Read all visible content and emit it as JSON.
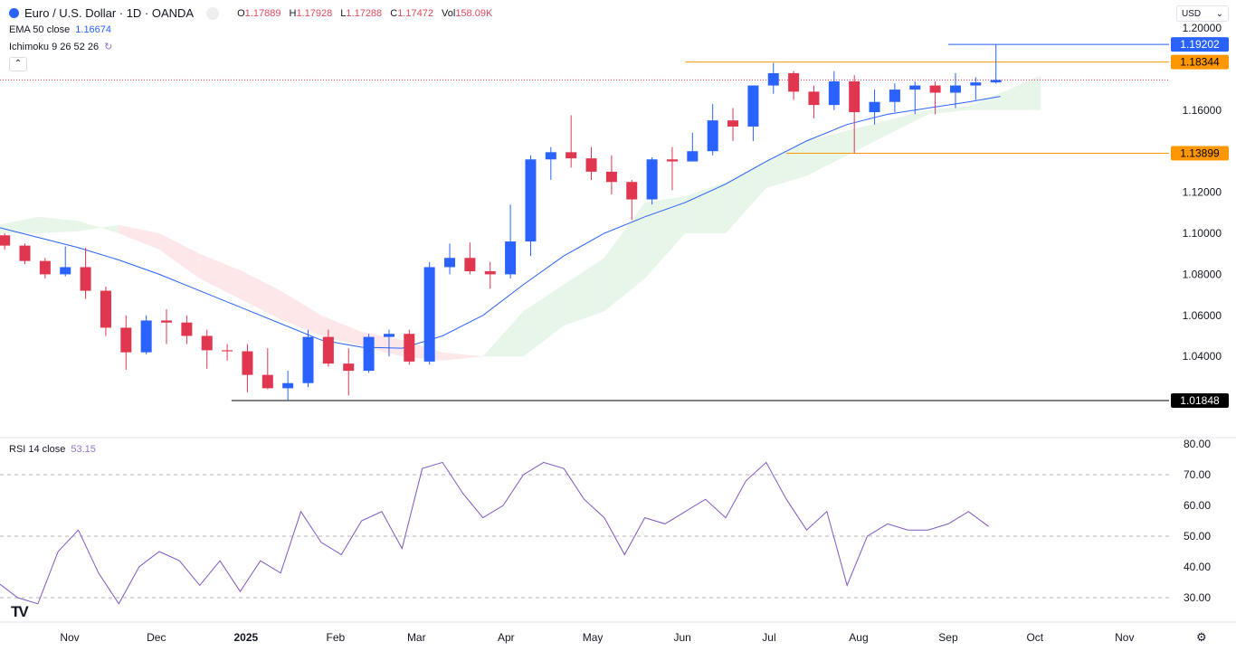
{
  "header": {
    "symbol": "Euro / U.S. Dollar · 1D · OANDA",
    "open_label": "O",
    "open": "1.17889",
    "high_label": "H",
    "high": "1.17928",
    "low_label": "L",
    "low": "1.17288",
    "close_label": "C",
    "close": "1.17472",
    "vol_label": "Vol",
    "vol": "158.09K"
  },
  "indicators": {
    "ema_label": "EMA 50 close",
    "ema_value": "1.16674",
    "ichimoku_label": "Ichimoku 9 26 52 26",
    "rsi_label": "RSI 14 close",
    "rsi_value": "53.15"
  },
  "currency": "USD",
  "colors": {
    "up": "#2962ff",
    "down": "#e0364f",
    "ema": "#2962ff",
    "rsi": "#7e57c2",
    "cloud_up": "#e8f5e9",
    "cloud_down": "#fde7e9",
    "level_orange": "#ff9800",
    "level_blue": "#2962ff"
  },
  "chart_data": {
    "type": "candlestick",
    "price_ticks": [
      "1.20000",
      "1.16000",
      "1.12000",
      "1.10000",
      "1.08000",
      "1.06000",
      "1.04000"
    ],
    "rsi_ticks": [
      "80.00",
      "70.00",
      "60.00",
      "50.00",
      "40.00",
      "30.00"
    ],
    "time_ticks": [
      {
        "label": "Nov",
        "date": "2024-11-01"
      },
      {
        "label": "Dec",
        "date": "2024-12-01"
      },
      {
        "label": "2025",
        "date": "2025-01-01",
        "bold": true
      },
      {
        "label": "Feb",
        "date": "2025-02-01"
      },
      {
        "label": "Mar",
        "date": "2025-03-01"
      },
      {
        "label": "Apr",
        "date": "2025-04-01"
      },
      {
        "label": "May",
        "date": "2025-05-01"
      },
      {
        "label": "Jun",
        "date": "2025-06-01"
      },
      {
        "label": "Jul",
        "date": "2025-07-01"
      },
      {
        "label": "Aug",
        "date": "2025-08-01"
      },
      {
        "label": "Sep",
        "date": "2025-09-01"
      },
      {
        "label": "Oct",
        "date": "2025-10-01"
      },
      {
        "label": "Nov",
        "date": "2025-11-01"
      }
    ],
    "levels": [
      {
        "label": "1.19202",
        "value": 1.19202,
        "color": "#2962ff",
        "from": "2025-09-01"
      },
      {
        "label": "1.18344",
        "value": 1.18344,
        "color": "#ff9800",
        "from": "2025-06-02"
      },
      {
        "label": "1.13899",
        "value": 1.13899,
        "color": "#ff9800",
        "from": "2025-07-07"
      },
      {
        "label": "1.01848",
        "value": 1.01848,
        "color": "#000000",
        "from": "2024-12-27"
      }
    ],
    "current_price": 1.17472,
    "candles": [
      [
        "2024-10-07",
        1.099,
        1.1,
        1.092,
        1.094
      ],
      [
        "2024-10-14",
        1.094,
        1.095,
        1.085,
        1.0865
      ],
      [
        "2024-10-21",
        1.0865,
        1.088,
        1.078,
        1.08
      ],
      [
        "2024-10-28",
        1.08,
        1.0935,
        1.079,
        1.0835
      ],
      [
        "2024-11-04",
        1.0835,
        1.093,
        1.068,
        1.072
      ],
      [
        "2024-11-11",
        1.072,
        1.074,
        1.05,
        1.054
      ],
      [
        "2024-11-18",
        1.054,
        1.06,
        1.0335,
        1.042
      ],
      [
        "2024-11-25",
        1.042,
        1.06,
        1.041,
        1.0575
      ],
      [
        "2024-12-02",
        1.0575,
        1.063,
        1.046,
        1.0565
      ],
      [
        "2024-12-09",
        1.0565,
        1.06,
        1.046,
        1.05
      ],
      [
        "2024-12-16",
        1.05,
        1.053,
        1.034,
        1.043
      ],
      [
        "2024-12-23",
        1.043,
        1.046,
        1.038,
        1.0425
      ],
      [
        "2024-12-30",
        1.0425,
        1.046,
        1.0225,
        1.031
      ],
      [
        "2025-01-06",
        1.031,
        1.044,
        1.024,
        1.0245
      ],
      [
        "2025-01-13",
        1.0245,
        1.033,
        1.0185,
        1.027
      ],
      [
        "2025-01-20",
        1.027,
        1.053,
        1.025,
        1.0495
      ],
      [
        "2025-01-27",
        1.0495,
        1.053,
        1.035,
        1.0365
      ],
      [
        "2025-02-03",
        1.0365,
        1.044,
        1.021,
        1.033
      ],
      [
        "2025-02-10",
        1.033,
        1.051,
        1.032,
        1.0495
      ],
      [
        "2025-02-17",
        1.0495,
        1.053,
        1.04,
        1.051
      ],
      [
        "2025-02-24",
        1.051,
        1.053,
        1.036,
        1.0375
      ],
      [
        "2025-03-03",
        1.0375,
        1.086,
        1.036,
        1.0835
      ],
      [
        "2025-03-10",
        1.0835,
        1.095,
        1.08,
        1.088
      ],
      [
        "2025-03-17",
        1.088,
        1.0955,
        1.08,
        1.0815
      ],
      [
        "2025-03-24",
        1.0815,
        1.086,
        1.073,
        1.08
      ],
      [
        "2025-03-31",
        1.08,
        1.114,
        1.078,
        1.096
      ],
      [
        "2025-04-07",
        1.096,
        1.138,
        1.089,
        1.136
      ],
      [
        "2025-04-14",
        1.136,
        1.142,
        1.126,
        1.1395
      ],
      [
        "2025-04-21",
        1.1395,
        1.1575,
        1.132,
        1.1365
      ],
      [
        "2025-04-28",
        1.1365,
        1.142,
        1.126,
        1.13
      ],
      [
        "2025-05-05",
        1.13,
        1.138,
        1.119,
        1.125
      ],
      [
        "2025-05-12",
        1.125,
        1.126,
        1.1065,
        1.1165
      ],
      [
        "2025-05-19",
        1.1165,
        1.137,
        1.114,
        1.136
      ],
      [
        "2025-05-26",
        1.136,
        1.142,
        1.121,
        1.135
      ],
      [
        "2025-06-02",
        1.135,
        1.149,
        1.135,
        1.14
      ],
      [
        "2025-06-09",
        1.14,
        1.163,
        1.138,
        1.155
      ],
      [
        "2025-06-16",
        1.155,
        1.161,
        1.145,
        1.152
      ],
      [
        "2025-06-23",
        1.152,
        1.172,
        1.145,
        1.172
      ],
      [
        "2025-06-30",
        1.172,
        1.183,
        1.168,
        1.178
      ],
      [
        "2025-07-07",
        1.178,
        1.179,
        1.165,
        1.169
      ],
      [
        "2025-07-14",
        1.169,
        1.172,
        1.156,
        1.1625
      ],
      [
        "2025-07-21",
        1.1625,
        1.179,
        1.16,
        1.174
      ],
      [
        "2025-07-28",
        1.174,
        1.177,
        1.139,
        1.159
      ],
      [
        "2025-08-04",
        1.159,
        1.17,
        1.153,
        1.164
      ],
      [
        "2025-08-11",
        1.164,
        1.173,
        1.159,
        1.17
      ],
      [
        "2025-08-18",
        1.17,
        1.174,
        1.158,
        1.172
      ],
      [
        "2025-08-25",
        1.172,
        1.174,
        1.158,
        1.1685
      ],
      [
        "2025-09-01",
        1.1685,
        1.178,
        1.161,
        1.172
      ],
      [
        "2025-09-08",
        1.172,
        1.176,
        1.165,
        1.1735
      ],
      [
        "2025-09-15",
        1.1735,
        1.192,
        1.173,
        1.1747
      ]
    ],
    "ema50": [
      [
        "2024-10-07",
        1.103
      ],
      [
        "2024-10-21",
        1.098
      ],
      [
        "2024-11-04",
        1.093
      ],
      [
        "2024-11-18",
        1.087
      ],
      [
        "2024-12-02",
        1.08
      ],
      [
        "2024-12-16",
        1.072
      ],
      [
        "2024-12-30",
        1.064
      ],
      [
        "2025-01-13",
        1.056
      ],
      [
        "2025-01-27",
        1.048
      ],
      [
        "2025-02-10",
        1.0445
      ],
      [
        "2025-02-24",
        1.044
      ],
      [
        "2025-03-10",
        1.05
      ],
      [
        "2025-03-24",
        1.06
      ],
      [
        "2025-04-07",
        1.075
      ],
      [
        "2025-04-21",
        1.089
      ],
      [
        "2025-05-05",
        1.1
      ],
      [
        "2025-05-19",
        1.108
      ],
      [
        "2025-06-02",
        1.115
      ],
      [
        "2025-06-16",
        1.124
      ],
      [
        "2025-06-30",
        1.135
      ],
      [
        "2025-07-14",
        1.145
      ],
      [
        "2025-07-28",
        1.153
      ],
      [
        "2025-08-11",
        1.158
      ],
      [
        "2025-08-25",
        1.161
      ],
      [
        "2025-09-08",
        1.164
      ],
      [
        "2025-09-19",
        1.1667
      ]
    ],
    "ichimoku_cloud": [
      [
        "2024-10-07",
        1.104,
        1.1
      ],
      [
        "2024-10-21",
        1.108,
        1.1
      ],
      [
        "2024-11-04",
        1.106,
        1.101
      ],
      [
        "2024-11-18",
        1.1,
        1.104
      ],
      [
        "2024-12-02",
        1.092,
        1.1
      ],
      [
        "2024-12-16",
        1.078,
        1.09
      ],
      [
        "2024-12-30",
        1.068,
        1.082
      ],
      [
        "2025-01-13",
        1.058,
        1.072
      ],
      [
        "2025-01-27",
        1.05,
        1.06
      ],
      [
        "2025-02-10",
        1.045,
        1.052
      ],
      [
        "2025-02-24",
        1.04,
        1.048
      ],
      [
        "2025-03-10",
        1.038,
        1.042
      ],
      [
        "2025-03-24",
        1.04,
        1.04
      ],
      [
        "2025-04-07",
        1.062,
        1.04
      ],
      [
        "2025-04-21",
        1.075,
        1.055
      ],
      [
        "2025-05-05",
        1.088,
        1.062
      ],
      [
        "2025-05-19",
        1.115,
        1.078
      ],
      [
        "2025-06-02",
        1.118,
        1.1
      ],
      [
        "2025-06-16",
        1.125,
        1.1
      ],
      [
        "2025-06-30",
        1.135,
        1.122
      ],
      [
        "2025-07-14",
        1.145,
        1.128
      ],
      [
        "2025-07-28",
        1.15,
        1.138
      ],
      [
        "2025-08-11",
        1.155,
        1.148
      ],
      [
        "2025-08-25",
        1.16,
        1.158
      ],
      [
        "2025-09-08",
        1.162,
        1.16
      ],
      [
        "2025-09-22",
        1.17,
        1.16
      ],
      [
        "2025-10-03",
        1.177,
        1.16
      ]
    ],
    "rsi": [
      [
        "2024-10-07",
        35
      ],
      [
        "2024-10-14",
        30
      ],
      [
        "2024-10-21",
        28
      ],
      [
        "2024-10-28",
        45
      ],
      [
        "2024-11-04",
        52
      ],
      [
        "2024-11-11",
        38
      ],
      [
        "2024-11-18",
        28
      ],
      [
        "2024-11-25",
        40
      ],
      [
        "2024-12-02",
        45
      ],
      [
        "2024-12-09",
        42
      ],
      [
        "2024-12-16",
        34
      ],
      [
        "2024-12-23",
        42
      ],
      [
        "2024-12-30",
        32
      ],
      [
        "2025-01-06",
        42
      ],
      [
        "2025-01-13",
        38
      ],
      [
        "2025-01-20",
        58
      ],
      [
        "2025-01-27",
        48
      ],
      [
        "2025-02-03",
        44
      ],
      [
        "2025-02-10",
        55
      ],
      [
        "2025-02-17",
        58
      ],
      [
        "2025-02-24",
        46
      ],
      [
        "2025-03-03",
        72
      ],
      [
        "2025-03-10",
        74
      ],
      [
        "2025-03-17",
        64
      ],
      [
        "2025-03-24",
        56
      ],
      [
        "2025-03-31",
        60
      ],
      [
        "2025-04-07",
        70
      ],
      [
        "2025-04-14",
        74
      ],
      [
        "2025-04-21",
        72
      ],
      [
        "2025-04-28",
        62
      ],
      [
        "2025-05-05",
        56
      ],
      [
        "2025-05-12",
        44
      ],
      [
        "2025-05-19",
        56
      ],
      [
        "2025-05-26",
        54
      ],
      [
        "2025-06-02",
        58
      ],
      [
        "2025-06-09",
        62
      ],
      [
        "2025-06-16",
        56
      ],
      [
        "2025-06-23",
        68
      ],
      [
        "2025-06-30",
        74
      ],
      [
        "2025-07-07",
        62
      ],
      [
        "2025-07-14",
        52
      ],
      [
        "2025-07-21",
        58
      ],
      [
        "2025-07-28",
        34
      ],
      [
        "2025-08-04",
        50
      ],
      [
        "2025-08-11",
        54
      ],
      [
        "2025-08-18",
        52
      ],
      [
        "2025-08-25",
        52
      ],
      [
        "2025-09-01",
        54
      ],
      [
        "2025-09-08",
        58
      ],
      [
        "2025-09-15",
        53.15
      ]
    ],
    "rsi_bands": [
      70,
      50,
      30
    ]
  }
}
